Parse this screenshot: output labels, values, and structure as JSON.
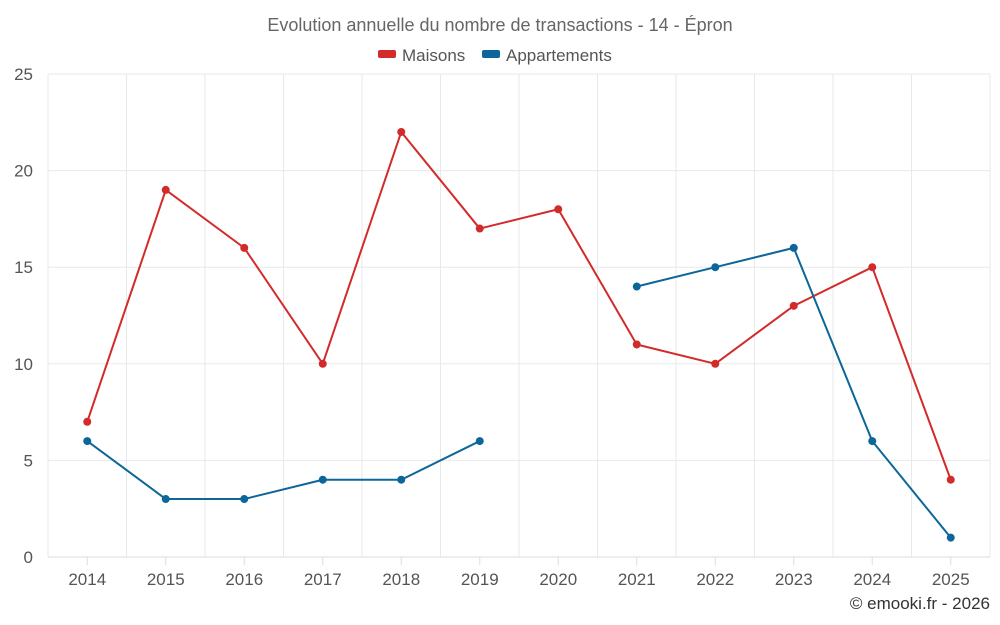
{
  "chart_data": {
    "type": "line",
    "title": "Evolution annuelle du nombre de transactions - 14 - Épron",
    "categories": [
      "2014",
      "2015",
      "2016",
      "2017",
      "2018",
      "2019",
      "2020",
      "2021",
      "2022",
      "2023",
      "2024",
      "2025"
    ],
    "series": [
      {
        "name": "Maisons",
        "color": "#d32a2a",
        "values": [
          7,
          19,
          16,
          10,
          22,
          17,
          18,
          11,
          10,
          13,
          15,
          4
        ]
      },
      {
        "name": "Appartements",
        "color": "#0d6699",
        "values": [
          6,
          3,
          3,
          4,
          4,
          6,
          null,
          14,
          15,
          16,
          6,
          1
        ]
      }
    ],
    "ylim": [
      0,
      25
    ],
    "yticks": [
      "0",
      "5",
      "10",
      "15",
      "20",
      "25"
    ],
    "ytick_values": [
      0,
      5,
      10,
      15,
      20,
      25
    ],
    "xlabel": "",
    "ylabel": "",
    "grid": true,
    "legend_position": "top-center"
  },
  "footer": {
    "credit": "© emooki.fr - 2026"
  }
}
